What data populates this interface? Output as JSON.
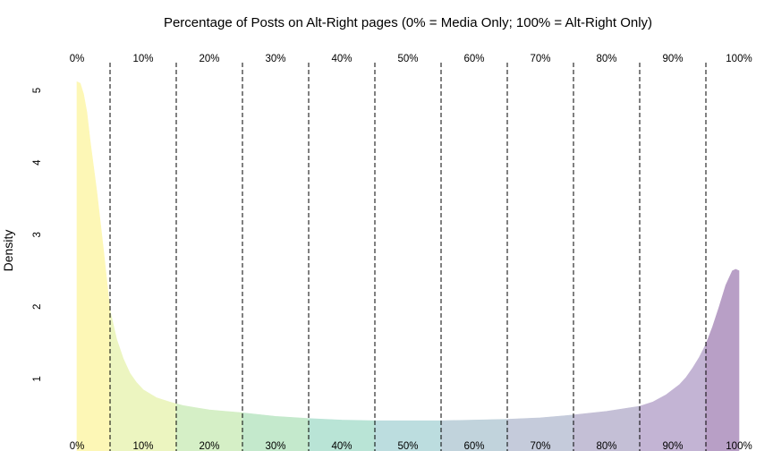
{
  "chart_data": {
    "type": "area",
    "title": "Percentage of Posts on Alt-Right pages (0% = Media Only; 100% = Alt-Right Only)",
    "xlabel": "",
    "ylabel": "Density",
    "xlim": [
      0,
      1
    ],
    "ylim": [
      0,
      5.2
    ],
    "x_tick_labels": [
      "0%",
      "10%",
      "20%",
      "30%",
      "40%",
      "50%",
      "60%",
      "70%",
      "80%",
      "90%",
      "100%"
    ],
    "x_tick_positions": [
      0,
      0.1,
      0.2,
      0.3,
      0.4,
      0.5,
      0.6,
      0.7,
      0.8,
      0.9,
      1.0
    ],
    "y_ticks": [
      1,
      2,
      3,
      4,
      5
    ],
    "dashed_boundaries": [
      0.05,
      0.15,
      0.25,
      0.35,
      0.45,
      0.55,
      0.65,
      0.75,
      0.85,
      0.95
    ],
    "band_colors": [
      "#fdf7b6",
      "#ecf5c0",
      "#d5efc6",
      "#c4e9cc",
      "#b9e4d6",
      "#bcdddf",
      "#c1d3dc",
      "#c5cbdb",
      "#c4bfd6",
      "#c3b4d4",
      "#b89fc6"
    ],
    "x": [
      0.0,
      0.005,
      0.01,
      0.015,
      0.02,
      0.03,
      0.04,
      0.05,
      0.06,
      0.07,
      0.08,
      0.09,
      0.1,
      0.12,
      0.14,
      0.16,
      0.18,
      0.2,
      0.25,
      0.3,
      0.35,
      0.4,
      0.45,
      0.5,
      0.55,
      0.6,
      0.65,
      0.7,
      0.75,
      0.8,
      0.85,
      0.87,
      0.89,
      0.91,
      0.92,
      0.93,
      0.94,
      0.95,
      0.96,
      0.97,
      0.98,
      0.99,
      0.995,
      1.0
    ],
    "y": [
      5.12,
      5.1,
      4.95,
      4.7,
      4.3,
      3.6,
      2.8,
      1.95,
      1.55,
      1.28,
      1.08,
      0.95,
      0.85,
      0.74,
      0.68,
      0.63,
      0.6,
      0.57,
      0.53,
      0.48,
      0.45,
      0.43,
      0.42,
      0.42,
      0.42,
      0.43,
      0.44,
      0.46,
      0.5,
      0.55,
      0.62,
      0.68,
      0.78,
      0.92,
      1.02,
      1.15,
      1.3,
      1.48,
      1.72,
      2.0,
      2.3,
      2.5,
      2.52,
      2.5
    ]
  }
}
